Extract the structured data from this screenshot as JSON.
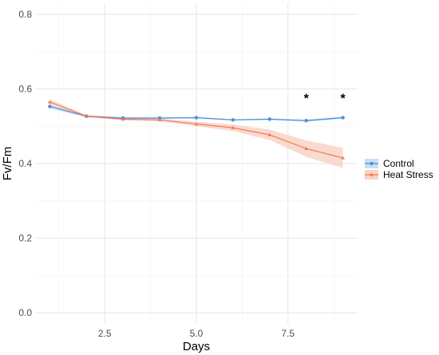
{
  "chart_data": {
    "type": "line",
    "xlabel": "Days",
    "ylabel": "Fv/Fm",
    "xlim": [
      0.6,
      9.4
    ],
    "ylim": [
      -0.03,
      0.83
    ],
    "x_ticks": [
      2.5,
      5.0,
      7.5
    ],
    "x_tick_labels": [
      "2.5",
      "5.0",
      "7.5"
    ],
    "y_ticks": [
      0.0,
      0.2,
      0.4,
      0.6,
      0.8
    ],
    "y_tick_labels": [
      "0.0",
      "0.2",
      "0.4",
      "0.6",
      "0.8"
    ],
    "grid": true,
    "legend_position": "right",
    "x": [
      1,
      2,
      3,
      4,
      5,
      6,
      7,
      8,
      9
    ],
    "series": [
      {
        "name": "Control",
        "color": "#4a90d9",
        "band_color": "#c9def5",
        "marker": "circle",
        "values": [
          0.553,
          0.527,
          0.522,
          0.522,
          0.523,
          0.517,
          0.519,
          0.515,
          0.523
        ],
        "lower": [
          0.548,
          0.524,
          0.52,
          0.52,
          0.521,
          0.515,
          0.517,
          0.512,
          0.52
        ],
        "upper": [
          0.558,
          0.53,
          0.524,
          0.524,
          0.525,
          0.519,
          0.521,
          0.518,
          0.526
        ]
      },
      {
        "name": "Heat Stress",
        "color": "#f07a5a",
        "band_color": "#f9d3c6",
        "marker": "triangle",
        "values": [
          0.565,
          0.527,
          0.519,
          0.517,
          0.506,
          0.496,
          0.477,
          0.44,
          0.415
        ],
        "lower": [
          0.558,
          0.524,
          0.516,
          0.513,
          0.5,
          0.487,
          0.463,
          0.418,
          0.388
        ],
        "upper": [
          0.572,
          0.53,
          0.522,
          0.521,
          0.512,
          0.505,
          0.491,
          0.462,
          0.442
        ]
      }
    ],
    "annotations": [
      {
        "x": 8,
        "y": 0.585,
        "text": "*"
      },
      {
        "x": 9,
        "y": 0.585,
        "text": "*"
      }
    ]
  }
}
